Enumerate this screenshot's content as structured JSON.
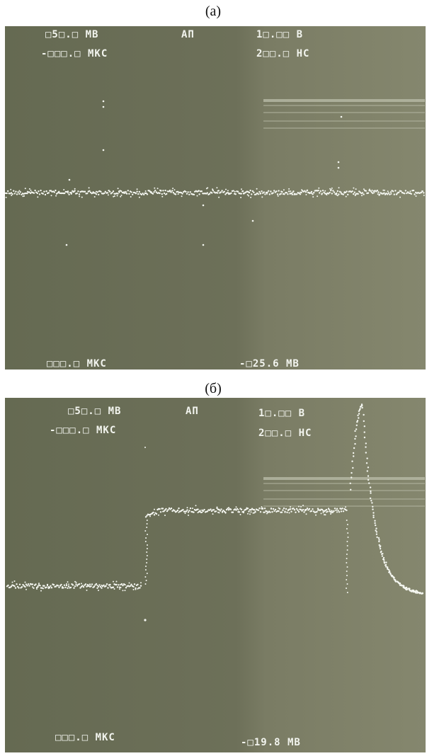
{
  "panels": [
    {
      "caption": "(а)",
      "readouts": {
        "volts_div": "□5□.□ МВ",
        "mode": "АП",
        "scale": "1□.□□ В",
        "delay": "-□□□.□ МКС",
        "time_div": "2□□.□ НС",
        "cursor_time": "□□□.□ МКС",
        "cursor_level": "-□25.6 МВ"
      }
    },
    {
      "caption": "(б)",
      "readouts": {
        "volts_div": "□5□.□ МВ",
        "mode": "АП",
        "scale": "1□.□□ В",
        "delay": "-□□□.□ МКС",
        "time_div": "2□□.□ НС",
        "cursor_time": "□□□.□ МКС",
        "cursor_level": "-□19.8 МВ"
      }
    }
  ]
}
